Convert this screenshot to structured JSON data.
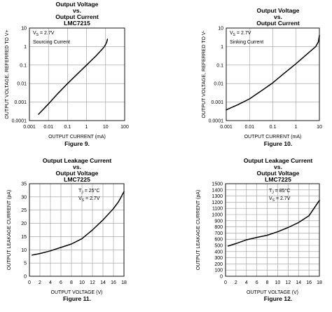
{
  "chart_data": [
    {
      "type": "line",
      "title": [
        "Output Voltage",
        "vs.",
        "Output Current",
        "LMC7215"
      ],
      "figure": "Figure 9.",
      "xlabel": "OUTPUT CURRENT (mA)",
      "ylabel": "OUTPUT VOLTAGE, REFERRED TO V+",
      "xscale": "log",
      "yscale": "log",
      "xlim": [
        0.001,
        100
      ],
      "ylim": [
        0.0001,
        10
      ],
      "xticks": [
        0.001,
        0.01,
        0.1,
        1,
        10,
        100
      ],
      "xtick_labels": [
        "0.001",
        "0.01",
        "0.1",
        "1",
        "10",
        "100"
      ],
      "yticks": [
        0.0001,
        0.001,
        0.01,
        0.1,
        1,
        10
      ],
      "ytick_labels": [
        "0.0001",
        "0.001",
        "0.01",
        "0.1",
        "1",
        "10"
      ],
      "grid": true,
      "annotations": [
        "V",
        "S",
        " = 2.7V",
        "Sourcing Current"
      ],
      "series": [
        {
          "x": [
            0.003,
            0.01,
            0.03,
            0.1,
            0.3,
            1,
            3,
            8,
            10,
            11.5,
            12.5
          ],
          "y": [
            0.00022,
            0.0008,
            0.0028,
            0.01,
            0.03,
            0.1,
            0.3,
            0.9,
            1.3,
            1.8,
            2.5
          ]
        }
      ]
    },
    {
      "type": "line",
      "title": [
        "Output Voltage",
        "vs.",
        "Output Current"
      ],
      "figure": "Figure 10.",
      "xlabel": "OUTPUT CURRENT (mA)",
      "ylabel": "OUTPUT VOLTAGE, REFERRED TO V-",
      "xscale": "log",
      "yscale": "log",
      "xlim": [
        0.001,
        10
      ],
      "ylim": [
        0.0001,
        10
      ],
      "xticks": [
        0.001,
        0.01,
        0.1,
        1,
        10
      ],
      "xtick_labels": [
        "0.001",
        "0.01",
        "0.1",
        "1",
        "10"
      ],
      "yticks": [
        0.0001,
        0.001,
        0.01,
        0.1,
        1,
        10
      ],
      "ytick_labels": [
        "0.0001",
        "0.001",
        "0.01",
        "0.1",
        "1",
        "10"
      ],
      "grid": true,
      "annotations": [
        "V",
        "S",
        " = 2.7V",
        "Sinking Current"
      ],
      "series": [
        {
          "x": [
            0.001,
            0.003,
            0.01,
            0.03,
            0.1,
            0.3,
            1,
            3,
            7,
            9,
            10
          ],
          "y": [
            0.00038,
            0.0007,
            0.0015,
            0.0038,
            0.011,
            0.035,
            0.12,
            0.4,
            1.0,
            1.8,
            4.0
          ]
        }
      ]
    },
    {
      "type": "line",
      "title": [
        "Output Leakage Current",
        "vs.",
        "Output Voltage",
        "LMC7225"
      ],
      "figure": "Figure 11.",
      "xlabel": "OUTPUT VOLTAGE (V)",
      "ylabel": "OUTPUT LEAKAGE CURRENT (pA)",
      "xscale": "linear",
      "yscale": "linear",
      "xlim": [
        0,
        18
      ],
      "ylim": [
        0,
        35
      ],
      "xticks": [
        0,
        2,
        4,
        6,
        8,
        10,
        12,
        14,
        16,
        18
      ],
      "xtick_labels": [
        "0",
        "2",
        "4",
        "6",
        "8",
        "10",
        "12",
        "14",
        "16",
        "18"
      ],
      "yticks": [
        0,
        5,
        10,
        15,
        20,
        25,
        30,
        35
      ],
      "ytick_labels": [
        "0",
        "5",
        "10",
        "15",
        "20",
        "25",
        "30",
        "35"
      ],
      "grid": true,
      "annotations": [
        "T",
        "J",
        " = 25°C",
        "V",
        "S",
        " = 2.7V"
      ],
      "series": [
        {
          "x": [
            0.5,
            2,
            4,
            6,
            8,
            10,
            12,
            14,
            16,
            17,
            18
          ],
          "y": [
            8.0,
            8.6,
            9.6,
            10.9,
            12.2,
            14.2,
            17.5,
            21.3,
            25.6,
            28.3,
            32.0
          ]
        }
      ]
    },
    {
      "type": "line",
      "title": [
        "Output Leakage Current",
        "vs.",
        "Output Voltage",
        "LMC7225"
      ],
      "figure": "Figure 12.",
      "xlabel": "OUTPUT VOLTAGE (V)",
      "ylabel": "OUTPUT LEAKAGE CURRENT (pA)",
      "xscale": "linear",
      "yscale": "linear",
      "xlim": [
        0,
        18
      ],
      "ylim": [
        0,
        1500
      ],
      "xticks": [
        0,
        2,
        4,
        6,
        8,
        10,
        12,
        14,
        16,
        18
      ],
      "xtick_labels": [
        "0",
        "2",
        "4",
        "6",
        "8",
        "10",
        "12",
        "14",
        "16",
        "18"
      ],
      "yticks": [
        0,
        100,
        200,
        300,
        400,
        500,
        600,
        700,
        800,
        900,
        1000,
        1100,
        1200,
        1300,
        1400,
        1500
      ],
      "ytick_labels": [
        "0",
        "100",
        "200",
        "300",
        "400",
        "500",
        "600",
        "700",
        "800",
        "900",
        "1000",
        "1100",
        "1200",
        "1300",
        "1400",
        "1500"
      ],
      "grid": true,
      "annotations": [
        "T",
        "J",
        " = 85°C",
        "V",
        "S",
        " = 2.7V"
      ],
      "series": [
        {
          "x": [
            0.5,
            2,
            4,
            6,
            8,
            10,
            12,
            14,
            16,
            18
          ],
          "y": [
            490,
            530,
            590,
            630,
            665,
            720,
            790,
            870,
            980,
            1230
          ]
        }
      ]
    }
  ]
}
